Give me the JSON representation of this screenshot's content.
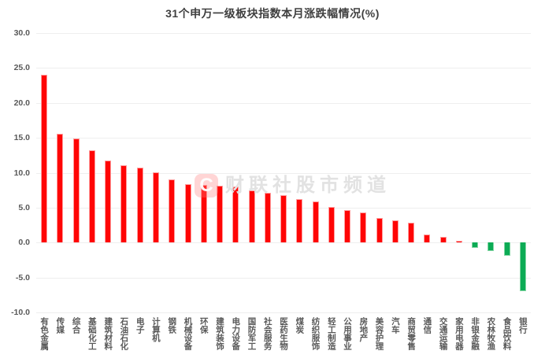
{
  "chart_data": {
    "type": "bar",
    "title": "31个申万一级板块指数本月涨跌幅情况(%)",
    "categories": [
      "有色金属",
      "传媒",
      "综合",
      "基础化工",
      "建筑材料",
      "石油石化",
      "电子",
      "计算机",
      "钢铁",
      "机械设备",
      "环保",
      "建筑装饰",
      "电力设备",
      "国防军工",
      "社会服务",
      "医药生物",
      "煤炭",
      "纺织服饰",
      "轻工制造",
      "公用事业",
      "房地产",
      "美容护理",
      "汽车",
      "商贸零售",
      "通信",
      "交通运输",
      "家用电器",
      "非银金融",
      "农林牧渔",
      "食品饮料",
      "银行"
    ],
    "values": [
      24.0,
      15.6,
      14.9,
      13.2,
      11.7,
      11.1,
      10.7,
      10.1,
      9.1,
      8.4,
      8.3,
      8.1,
      8.0,
      7.5,
      7.1,
      6.8,
      6.2,
      5.9,
      5.1,
      4.7,
      4.3,
      3.5,
      3.2,
      2.9,
      1.2,
      0.8,
      0.3,
      -0.8,
      -1.2,
      -1.9,
      -7.0
    ],
    "xlabel": "",
    "ylabel": "",
    "ylim": [
      -10,
      30
    ],
    "ytick_interval": 5,
    "ytick_labels": [
      "30.0",
      "25.0",
      "20.0",
      "15.0",
      "10.0",
      "5.0",
      "0.0",
      "-5.0",
      "-10.0"
    ],
    "grid": "horizontal-only",
    "legend": "none",
    "colors": {
      "positive_bar": "#ff0505",
      "positive_border": "#ff9c9c",
      "negative_bar": "#0cab55",
      "negative_border": "#84d6a4",
      "gridline": "#eeeeee",
      "tick_label": "#595959",
      "title": "#404040"
    }
  },
  "watermark": {
    "logo_letter": "C",
    "text": "财联社股市频道"
  }
}
